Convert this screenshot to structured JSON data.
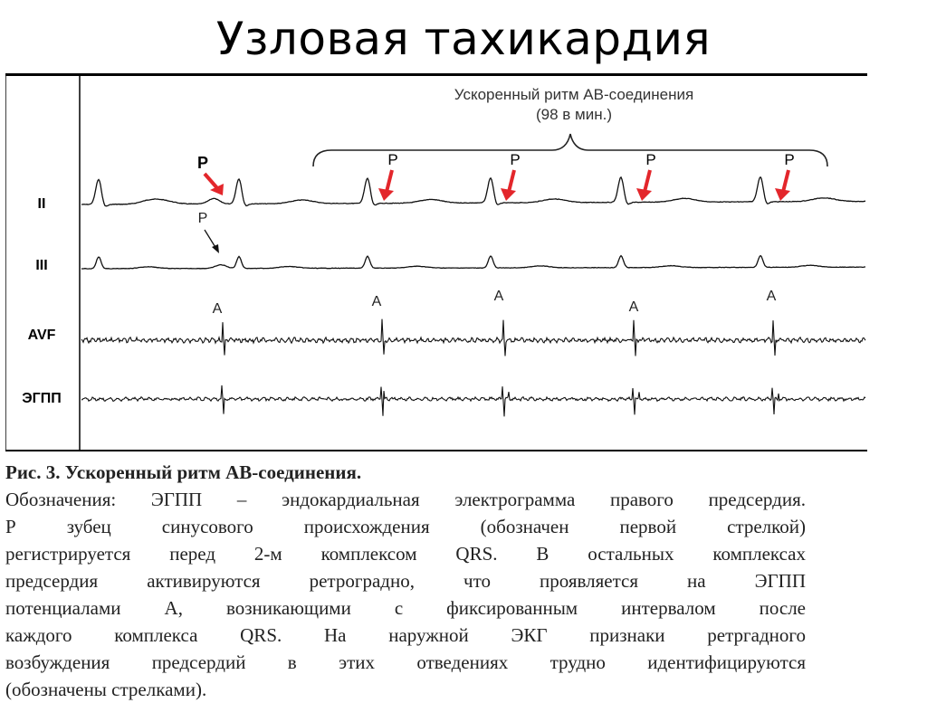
{
  "slide": {
    "title": "Узловая тахикардия"
  },
  "figure": {
    "brace_label_line1": "Ускоренный ритм АВ-соединения",
    "brace_label_line2": "(98 в мин.)",
    "leads": [
      "II",
      "III",
      "AVF",
      "ЭГПП"
    ],
    "p_marker": "P",
    "a_marker": "A",
    "arrow_color": "#e3262b"
  },
  "caption": {
    "title": "Рис. 3. Ускоренный ритм АВ-соединения.",
    "lines": [
      "Обозначения: ЭГПП – эндокардиальная электрограмма правого предсердия.",
      "Р зубец синусового происхождения (обозначен первой стрелкой)",
      "регистрируется перед 2-м комплексом QRS. В остальных комплексах",
      "предсердия активируются ретроградно, что проявляется на ЭГПП",
      "потенциалами А, возникающими с фиксированным интервалом после",
      "каждого комплекса QRS. На наружной ЭКГ признаки ретргадного",
      "возбуждения предсердий в этих отведениях трудно идентифицируются",
      "(обозначены стрелками)."
    ]
  }
}
